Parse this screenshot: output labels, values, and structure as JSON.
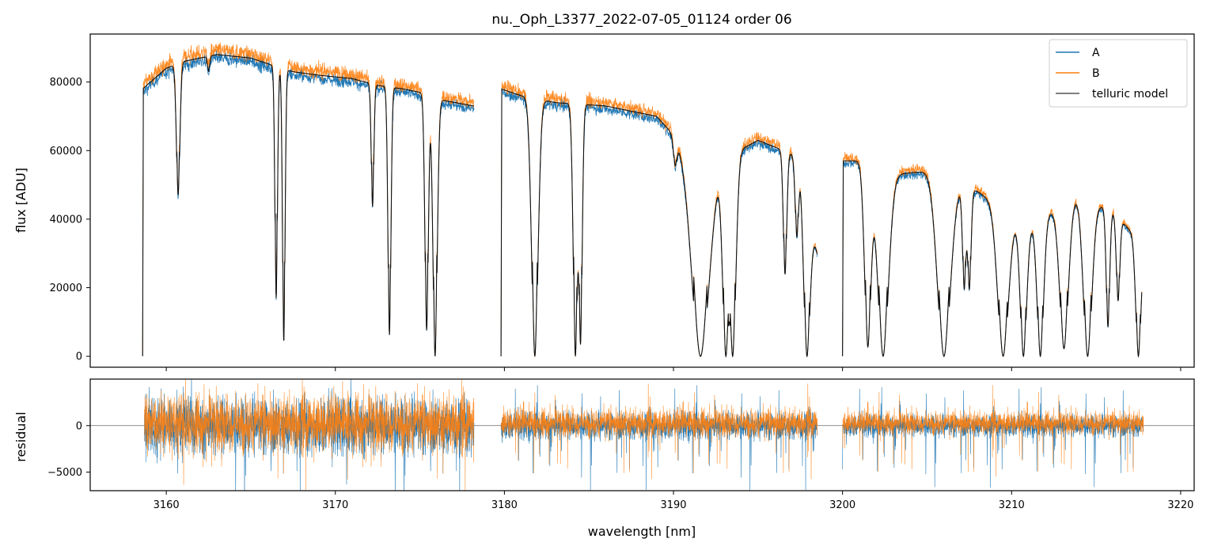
{
  "chart_data": [
    {
      "type": "line",
      "title": "nu._Oph_L3377_2022-07-05_01124  order 06",
      "xlabel": "",
      "ylabel": "flux [ADU]",
      "xlim": [
        3155.5,
        3220.8
      ],
      "ylim": [
        -3200,
        94000
      ],
      "yticks": [
        0,
        20000,
        40000,
        60000,
        80000
      ],
      "ytick_labels": [
        "0",
        "20000",
        "40000",
        "60000",
        "80000"
      ],
      "xticks": [
        3160,
        3170,
        3180,
        3190,
        3200,
        3210,
        3220
      ],
      "legend": {
        "position": "top-right"
      },
      "series": [
        {
          "name": "A",
          "color": "#1f77b4"
        },
        {
          "name": "B",
          "color": "#ff7f0e"
        },
        {
          "name": "telluric model",
          "color": "#555555"
        }
      ],
      "continuum_segments": [
        {
          "x": [
            3158.6,
            3160.0,
            3161.0,
            3163.0,
            3165.0,
            3166.2,
            3167.5,
            3169.0,
            3171.0,
            3172.5,
            3174.0,
            3175.0,
            3176.0,
            3178.2
          ],
          "y": [
            78000,
            84000,
            86000,
            88000,
            87000,
            85000,
            83000,
            82000,
            81000,
            79000,
            78000,
            77000,
            75000,
            73000
          ]
        },
        {
          "x": [
            3179.8,
            3181.0,
            3183.0,
            3186.0,
            3189.0,
            3190.3,
            3192.0,
            3195.0,
            3197.5,
            3198.5
          ],
          "y": [
            78000,
            76000,
            74000,
            73000,
            70000,
            63000,
            55000,
            63000,
            58000,
            30000
          ]
        },
        {
          "x": [
            3200.0,
            3201.0,
            3203.0,
            3205.0,
            3208.0,
            3211.0,
            3214.0,
            3216.0,
            3217.7
          ],
          "y": [
            57000,
            57000,
            53000,
            54000,
            48000,
            38000,
            47000,
            42000,
            33000
          ]
        }
      ],
      "absorption_lines": [
        {
          "x": 3160.7,
          "depth": 0.45,
          "width": 0.08
        },
        {
          "x": 3162.5,
          "depth": 0.05,
          "width": 0.05
        },
        {
          "x": 3166.5,
          "depth": 0.8,
          "width": 0.06
        },
        {
          "x": 3166.95,
          "depth": 0.95,
          "width": 0.06
        },
        {
          "x": 3172.2,
          "depth": 0.45,
          "width": 0.06
        },
        {
          "x": 3173.2,
          "depth": 0.92,
          "width": 0.07
        },
        {
          "x": 3175.4,
          "depth": 0.9,
          "width": 0.08
        },
        {
          "x": 3175.9,
          "depth": 1.0,
          "width": 0.1
        },
        {
          "x": 3181.8,
          "depth": 1.0,
          "width": 0.15
        },
        {
          "x": 3184.2,
          "depth": 1.0,
          "width": 0.1
        },
        {
          "x": 3184.5,
          "depth": 0.95,
          "width": 0.08
        },
        {
          "x": 3190.1,
          "depth": 0.12,
          "width": 0.08
        },
        {
          "x": 3191.6,
          "depth": 1.0,
          "width": 0.4
        },
        {
          "x": 3193.1,
          "depth": 1.0,
          "width": 0.15
        },
        {
          "x": 3193.5,
          "depth": 1.0,
          "width": 0.15
        },
        {
          "x": 3196.6,
          "depth": 0.6,
          "width": 0.08
        },
        {
          "x": 3197.3,
          "depth": 0.4,
          "width": 0.08
        },
        {
          "x": 3197.9,
          "depth": 1.0,
          "width": 0.15
        },
        {
          "x": 3201.5,
          "depth": 0.95,
          "width": 0.15
        },
        {
          "x": 3202.4,
          "depth": 1.0,
          "width": 0.25
        },
        {
          "x": 3206.0,
          "depth": 1.0,
          "width": 0.3
        },
        {
          "x": 3207.2,
          "depth": 0.6,
          "width": 0.08
        },
        {
          "x": 3207.5,
          "depth": 0.6,
          "width": 0.08
        },
        {
          "x": 3209.5,
          "depth": 1.0,
          "width": 0.25
        },
        {
          "x": 3210.7,
          "depth": 1.0,
          "width": 0.15
        },
        {
          "x": 3211.7,
          "depth": 1.0,
          "width": 0.15
        },
        {
          "x": 3213.1,
          "depth": 0.95,
          "width": 0.2
        },
        {
          "x": 3214.5,
          "depth": 1.0,
          "width": 0.2
        },
        {
          "x": 3215.7,
          "depth": 0.8,
          "width": 0.08
        },
        {
          "x": 3216.3,
          "depth": 0.6,
          "width": 0.08
        },
        {
          "x": 3217.5,
          "depth": 1.0,
          "width": 0.12
        }
      ]
    },
    {
      "type": "line",
      "xlabel": "wavelength [nm]",
      "ylabel": "residual",
      "xlim": [
        3155.5,
        3220.8
      ],
      "ylim": [
        -7000,
        5000
      ],
      "yticks": [
        -5000,
        0
      ],
      "ytick_labels": [
        "−5000",
        "0"
      ],
      "xticks": [
        3160,
        3170,
        3180,
        3190,
        3200,
        3210,
        3220
      ],
      "xtick_labels": [
        "3160",
        "3170",
        "3180",
        "3190",
        "3200",
        "3210",
        "3220"
      ],
      "reference_line": 0,
      "series": [
        {
          "name": "A",
          "color": "#1f77b4"
        },
        {
          "name": "B",
          "color": "#ff7f0e"
        }
      ],
      "noise_segments": [
        {
          "x": [
            3158.7,
            3178.2
          ],
          "amplitude": 3000
        },
        {
          "x": [
            3179.8,
            3198.5
          ],
          "amplitude": 1500
        },
        {
          "x": [
            3200.0,
            3217.8
          ],
          "amplitude": 1200
        }
      ]
    }
  ]
}
